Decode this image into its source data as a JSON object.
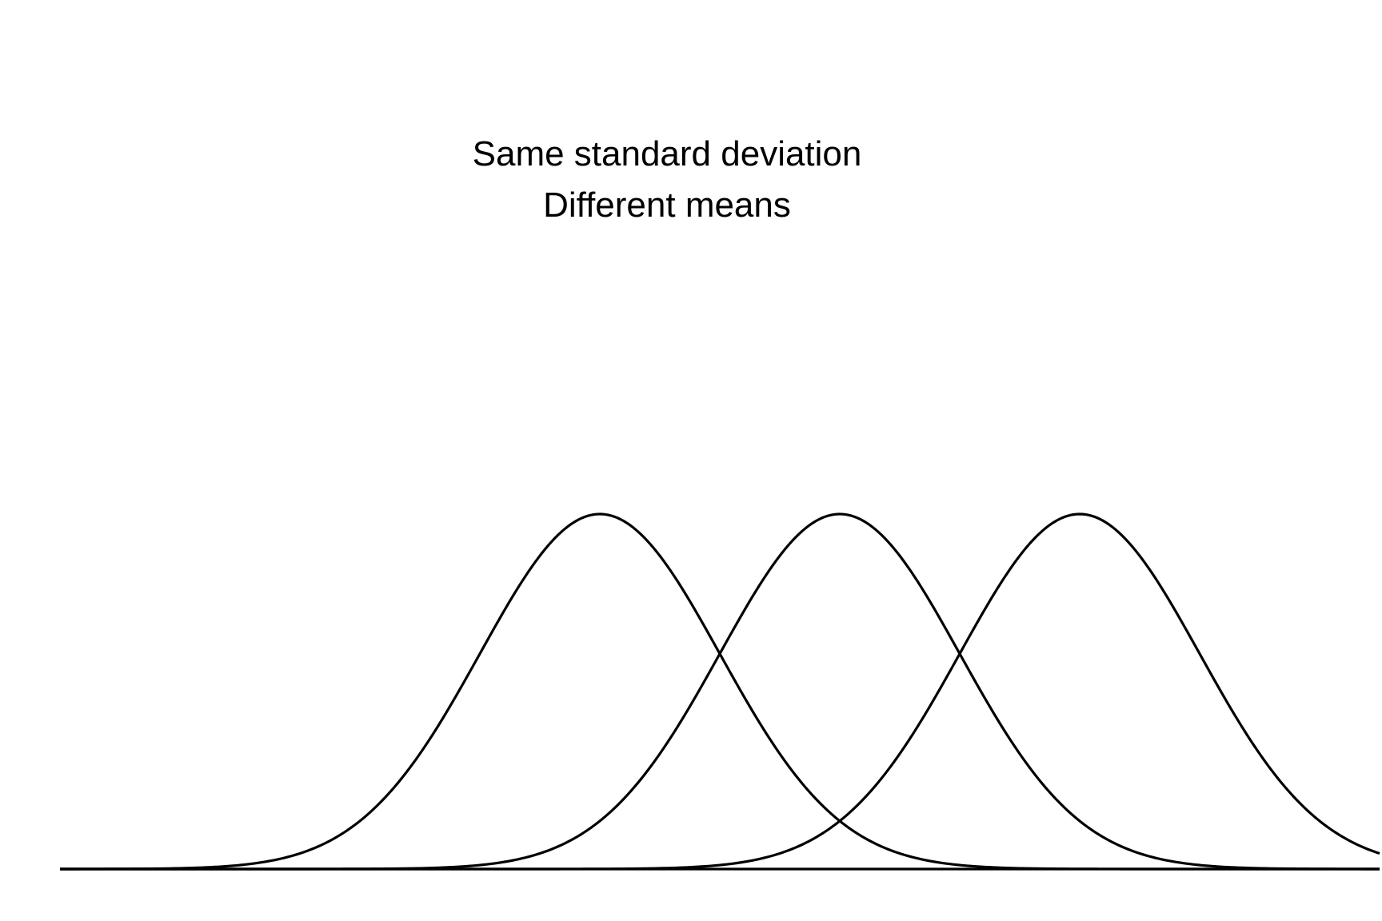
{
  "chart_data": {
    "type": "line",
    "title_lines": [
      "Same standard deviation",
      "Different means"
    ],
    "xlabel": "",
    "ylabel": "",
    "xlim": [
      -4.5,
      6.5
    ],
    "ylim": [
      0,
      0.4
    ],
    "grid": false,
    "axes_visible": false,
    "baseline": true,
    "series": [
      {
        "mean": 0,
        "sd": 1,
        "color": "#000000"
      },
      {
        "mean": 2,
        "sd": 1,
        "color": "#000000"
      },
      {
        "mean": 4,
        "sd": 1,
        "color": "#000000"
      }
    ]
  }
}
